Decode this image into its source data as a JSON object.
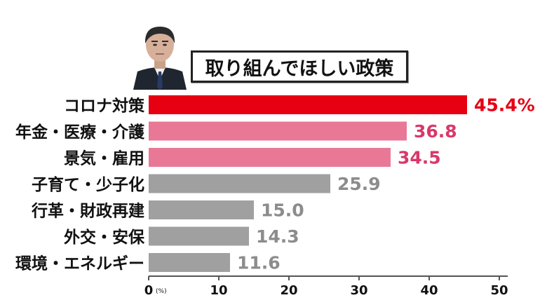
{
  "chart_data": {
    "type": "bar",
    "orientation": "horizontal",
    "title": "取り組んでほしい政策",
    "categories": [
      "コロナ対策",
      "年金・医療・介護",
      "景気・雇用",
      "子育て・少子化",
      "行革・財政再建",
      "外交・安保",
      "環境・エネルギー"
    ],
    "values": [
      45.4,
      36.8,
      34.5,
      25.9,
      15.0,
      14.3,
      11.6
    ],
    "value_labels": [
      "45.4%",
      "36.8",
      "34.5",
      "25.9",
      "15.0",
      "14.3",
      "11.6"
    ],
    "bar_colors": [
      "#e60012",
      "#e87896",
      "#e87896",
      "#a0a0a0",
      "#a0a0a0",
      "#a0a0a0",
      "#a0a0a0"
    ],
    "label_colors": [
      "#e60012",
      "#d9386a",
      "#d9386a",
      "#8c8c8c",
      "#8c8c8c",
      "#8c8c8c",
      "#8c8c8c"
    ],
    "xlim": [
      0,
      50
    ],
    "xticks": [
      0,
      10,
      20,
      30,
      40,
      50
    ],
    "xtick_labels": [
      "0",
      "10",
      "20",
      "30",
      "40",
      "50"
    ],
    "unit_label": "(%)",
    "grid": false
  }
}
